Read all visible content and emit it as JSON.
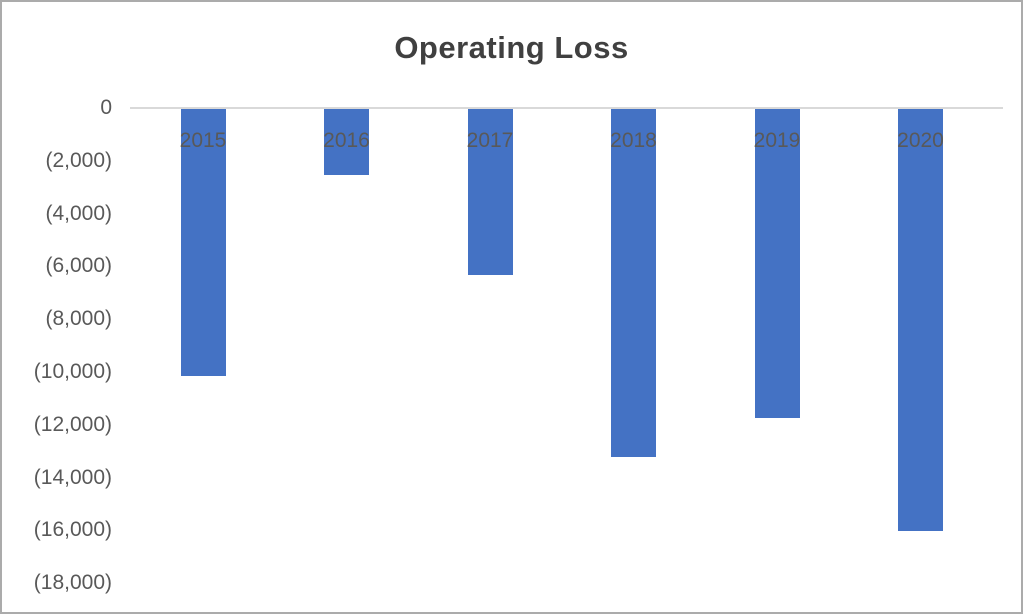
{
  "chart": {
    "title": "Operating Loss"
  },
  "chart_data": {
    "type": "bar",
    "title": "Operating Loss",
    "xlabel": "",
    "ylabel": "",
    "categories": [
      "2015",
      "2016",
      "2017",
      "2018",
      "2019",
      "2020"
    ],
    "series": [
      {
        "name": "Operating Loss",
        "values": [
          -10100,
          -2500,
          -6300,
          -13200,
          -11700,
          -16000
        ]
      }
    ],
    "ylim": [
      -18000,
      0
    ],
    "y_tick_step": 2000,
    "y_tick_labels": [
      "0",
      "(2,000)",
      "(4,000)",
      "(6,000)",
      "(8,000)",
      "(10,000)",
      "(12,000)",
      "(14,000)",
      "(16,000)",
      "(18,000)"
    ],
    "number_format": "negative-in-parentheses",
    "grid": false,
    "legend_position": "none",
    "colors": {
      "bar": "#4472C4",
      "axis_line": "#D9D9D9",
      "tick_label": "#595959",
      "category_label": "#595959",
      "title": "#404040"
    }
  }
}
